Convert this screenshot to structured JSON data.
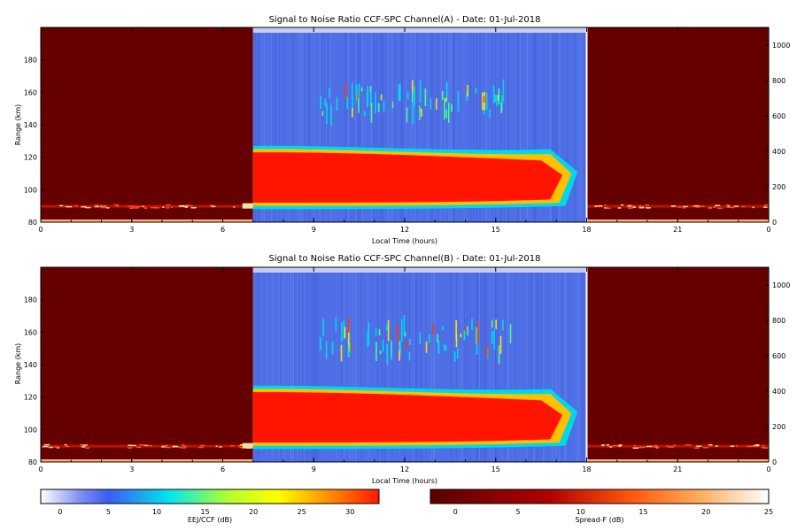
{
  "chart_data": [
    {
      "type": "heatmap",
      "title": "Signal to Noise Ratio CCF-SPC Channel(A) - Date: 01-Jul-2018",
      "xlabel": "Local Time (hours)",
      "ylabel": "Range (km)",
      "xlim": [
        0,
        24
      ],
      "ylim": [
        80,
        200
      ],
      "y2lim": [
        0,
        1100
      ],
      "x_ticks": [
        "0",
        "3",
        "6",
        "9",
        "12",
        "15",
        "18",
        "21",
        "0"
      ],
      "y_ticks": [
        "80",
        "100",
        "120",
        "140",
        "160",
        "180"
      ],
      "y2_ticks": [
        "0",
        "200",
        "400",
        "600",
        "800",
        "1000"
      ],
      "segments": [
        {
          "x0": 0,
          "x1": 7,
          "colorbar": "Spread-F (dB)",
          "bottom_layer_range_km": 90
        },
        {
          "x0": 7,
          "x1": 18,
          "colorbar": "EEJ/CCF (dB)",
          "eej_layer": {
            "bottom_km": 88,
            "top_km": 127,
            "core_bottom_km": 92,
            "core_top_km": 123
          },
          "ccf_echoes_km": [
            140,
            168
          ],
          "ccf_echoes_time": [
            9.2,
            15.3
          ]
        },
        {
          "x0": 18,
          "x1": 24,
          "colorbar": "Spread-F (dB)",
          "bottom_layer_range_km": 90
        }
      ]
    },
    {
      "type": "heatmap",
      "title": "Signal to Noise Ratio CCF-SPC Channel(B) - Date: 01-Jul-2018",
      "xlabel": "Local Time (hours)",
      "ylabel": "Range (km)",
      "xlim": [
        0,
        24
      ],
      "ylim": [
        80,
        200
      ],
      "y2lim": [
        0,
        1100
      ],
      "x_ticks": [
        "0",
        "3",
        "6",
        "9",
        "12",
        "15",
        "18",
        "21",
        "0"
      ],
      "y_ticks": [
        "80",
        "100",
        "120",
        "140",
        "160",
        "180"
      ],
      "y2_ticks": [
        "0",
        "200",
        "400",
        "600",
        "800",
        "1000"
      ],
      "segments": [
        {
          "x0": 0,
          "x1": 7,
          "colorbar": "Spread-F (dB)",
          "bottom_layer_range_km": 90
        },
        {
          "x0": 7,
          "x1": 18,
          "colorbar": "EEJ/CCF (dB)",
          "eej_layer": {
            "bottom_km": 88,
            "top_km": 127,
            "core_bottom_km": 92,
            "core_top_km": 123
          },
          "ccf_echoes_km": [
            138,
            172
          ],
          "ccf_echoes_time": [
            9.0,
            15.5
          ]
        },
        {
          "x0": 18,
          "x1": 24,
          "colorbar": "Spread-F (dB)",
          "bottom_layer_range_km": 90
        }
      ]
    }
  ],
  "colorbars": [
    {
      "label": "EEJ/CCF (dB)",
      "ticks": [
        "0",
        "5",
        "10",
        "15",
        "20",
        "25",
        "30"
      ],
      "range": [
        -2,
        33
      ],
      "colors": [
        "#ffffff",
        "#3d5cf0",
        "#00e6f0",
        "#b0ff30",
        "#ffff00",
        "#ff2000"
      ]
    },
    {
      "label": "Spread-F (dB)",
      "ticks": [
        "0",
        "5",
        "10",
        "15",
        "20",
        "25"
      ],
      "range": [
        -2,
        25
      ],
      "colors": [
        "#6b0000",
        "#d00000",
        "#ff7a1a",
        "#ffffff"
      ]
    }
  ]
}
